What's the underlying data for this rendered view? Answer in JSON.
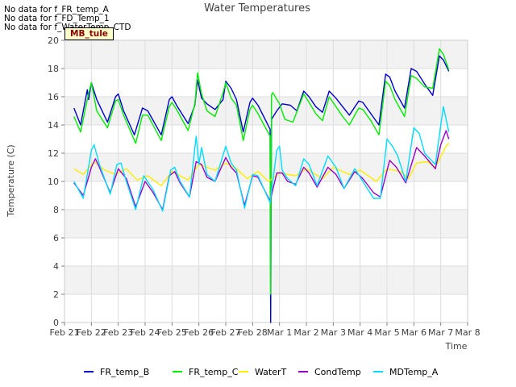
{
  "notes": [
    "No data for f_FR_temp_A",
    "No data for f_FD_Temp_1",
    "No data for f_WaterTemp_CTD"
  ],
  "site_badge": "MB_tule",
  "chart_data": {
    "type": "line",
    "title": "Water Temperatures",
    "xlabel": "Time",
    "ylabel": "Temperature (C)",
    "xlim": [
      "2021-02-21",
      "2021-03-08"
    ],
    "ylim": [
      0,
      20
    ],
    "yticks": [
      0,
      2,
      4,
      6,
      8,
      10,
      12,
      14,
      16,
      18,
      20
    ],
    "xticks": [
      {
        "label": "Feb 21",
        "day": 0
      },
      {
        "label": "Feb 22",
        "day": 1
      },
      {
        "label": "Feb 23",
        "day": 2
      },
      {
        "label": "Feb 24",
        "day": 3
      },
      {
        "label": "Feb 25",
        "day": 4
      },
      {
        "label": "Feb 26",
        "day": 5
      },
      {
        "label": "Feb 27",
        "day": 6
      },
      {
        "label": "Feb 28",
        "day": 7
      },
      {
        "label": "Mar 1",
        "day": 8
      },
      {
        "label": "Mar 2",
        "day": 9
      },
      {
        "label": "Mar 3",
        "day": 10
      },
      {
        "label": "Mar 4",
        "day": 11
      },
      {
        "label": "Mar 5",
        "day": 12
      },
      {
        "label": "Mar 6",
        "day": 13
      },
      {
        "label": "Mar 7",
        "day": 14
      },
      {
        "label": "Mar 8",
        "day": 15
      }
    ],
    "grid": true,
    "background_bands": "alternating light grey every 2 degrees",
    "legend_position": "bottom",
    "series": [
      {
        "name": "FR_temp_B",
        "color": "#0000cc",
        "points": [
          [
            0.35,
            15.2
          ],
          [
            0.6,
            14.0
          ],
          [
            0.85,
            16.5
          ],
          [
            0.9,
            15.8
          ],
          [
            1.0,
            17.0
          ],
          [
            1.2,
            15.8
          ],
          [
            1.6,
            14.2
          ],
          [
            1.9,
            16.0
          ],
          [
            2.0,
            16.2
          ],
          [
            2.2,
            15.0
          ],
          [
            2.6,
            13.3
          ],
          [
            2.9,
            15.2
          ],
          [
            3.1,
            15.0
          ],
          [
            3.6,
            13.3
          ],
          [
            3.9,
            15.8
          ],
          [
            4.0,
            16.0
          ],
          [
            4.2,
            15.3
          ],
          [
            4.6,
            14.1
          ],
          [
            4.85,
            15.4
          ],
          [
            4.95,
            17.2
          ],
          [
            5.1,
            15.9
          ],
          [
            5.3,
            15.5
          ],
          [
            5.6,
            15.1
          ],
          [
            5.9,
            15.8
          ],
          [
            6.0,
            17.1
          ],
          [
            6.2,
            16.6
          ],
          [
            6.4,
            15.8
          ],
          [
            6.65,
            13.5
          ],
          [
            6.9,
            15.6
          ],
          [
            7.0,
            15.9
          ],
          [
            7.2,
            15.4
          ],
          [
            7.65,
            13.7
          ],
          [
            7.67,
            0.0
          ],
          [
            7.7,
            14.4
          ],
          [
            7.9,
            15.0
          ],
          [
            8.1,
            15.5
          ],
          [
            8.4,
            15.4
          ],
          [
            8.65,
            15.0
          ],
          [
            8.9,
            16.4
          ],
          [
            9.1,
            16.0
          ],
          [
            9.35,
            15.3
          ],
          [
            9.6,
            14.9
          ],
          [
            9.85,
            16.4
          ],
          [
            10.1,
            15.9
          ],
          [
            10.35,
            15.3
          ],
          [
            10.6,
            14.7
          ],
          [
            10.95,
            15.7
          ],
          [
            11.1,
            15.6
          ],
          [
            11.4,
            14.8
          ],
          [
            11.7,
            14.0
          ],
          [
            11.95,
            17.6
          ],
          [
            12.1,
            17.4
          ],
          [
            12.3,
            16.4
          ],
          [
            12.65,
            15.2
          ],
          [
            12.9,
            18.0
          ],
          [
            13.1,
            17.8
          ],
          [
            13.4,
            16.9
          ],
          [
            13.7,
            16.1
          ],
          [
            13.95,
            18.9
          ],
          [
            14.1,
            18.6
          ],
          [
            14.3,
            17.8
          ]
        ]
      },
      {
        "name": "FR_temp_C",
        "color": "#00ee00",
        "points": [
          [
            0.35,
            14.6
          ],
          [
            0.6,
            13.5
          ],
          [
            0.85,
            15.8
          ],
          [
            1.0,
            17.0
          ],
          [
            1.2,
            15.0
          ],
          [
            1.6,
            13.8
          ],
          [
            1.9,
            15.7
          ],
          [
            2.0,
            15.8
          ],
          [
            2.2,
            14.7
          ],
          [
            2.65,
            12.7
          ],
          [
            2.9,
            14.7
          ],
          [
            3.1,
            14.7
          ],
          [
            3.6,
            12.9
          ],
          [
            3.9,
            15.3
          ],
          [
            4.0,
            15.6
          ],
          [
            4.2,
            15.0
          ],
          [
            4.6,
            13.6
          ],
          [
            4.85,
            15.5
          ],
          [
            4.95,
            17.7
          ],
          [
            5.1,
            16.2
          ],
          [
            5.3,
            15.0
          ],
          [
            5.6,
            14.6
          ],
          [
            5.9,
            16.3
          ],
          [
            6.0,
            17.0
          ],
          [
            6.2,
            15.9
          ],
          [
            6.4,
            15.4
          ],
          [
            6.65,
            12.9
          ],
          [
            6.9,
            15.1
          ],
          [
            7.0,
            15.4
          ],
          [
            7.2,
            14.8
          ],
          [
            7.65,
            13.2
          ],
          [
            7.67,
            2.0
          ],
          [
            7.7,
            16.1
          ],
          [
            7.75,
            16.3
          ],
          [
            8.0,
            15.5
          ],
          [
            8.2,
            14.4
          ],
          [
            8.5,
            14.2
          ],
          [
            8.9,
            16.2
          ],
          [
            9.1,
            15.6
          ],
          [
            9.35,
            14.8
          ],
          [
            9.6,
            14.3
          ],
          [
            9.85,
            16.0
          ],
          [
            10.1,
            15.3
          ],
          [
            10.35,
            14.6
          ],
          [
            10.6,
            14.0
          ],
          [
            10.95,
            15.2
          ],
          [
            11.1,
            15.1
          ],
          [
            11.4,
            14.3
          ],
          [
            11.7,
            13.3
          ],
          [
            11.95,
            17.1
          ],
          [
            12.1,
            16.8
          ],
          [
            12.3,
            15.8
          ],
          [
            12.65,
            14.6
          ],
          [
            12.9,
            17.5
          ],
          [
            13.1,
            17.3
          ],
          [
            13.4,
            16.7
          ],
          [
            13.7,
            16.6
          ],
          [
            13.95,
            19.4
          ],
          [
            14.1,
            19.0
          ],
          [
            14.3,
            17.9
          ]
        ]
      },
      {
        "name": "WaterT",
        "color": "#ffee00",
        "points": [
          [
            0.35,
            10.9
          ],
          [
            0.7,
            10.5
          ],
          [
            1.1,
            11.4
          ],
          [
            1.5,
            10.8
          ],
          [
            1.9,
            10.5
          ],
          [
            2.3,
            10.9
          ],
          [
            2.7,
            10.1
          ],
          [
            3.1,
            10.4
          ],
          [
            3.6,
            9.7
          ],
          [
            4.0,
            10.7
          ],
          [
            4.6,
            10.1
          ],
          [
            5.0,
            11.2
          ],
          [
            5.6,
            10.8
          ],
          [
            6.0,
            11.3
          ],
          [
            6.4,
            10.9
          ],
          [
            6.8,
            10.2
          ],
          [
            7.2,
            10.7
          ],
          [
            7.6,
            10.0
          ],
          [
            8.0,
            10.6
          ],
          [
            8.6,
            10.4
          ],
          [
            9.0,
            10.9
          ],
          [
            9.6,
            10.2
          ],
          [
            10.0,
            11.0
          ],
          [
            10.6,
            10.5
          ],
          [
            11.0,
            10.8
          ],
          [
            11.6,
            10.0
          ],
          [
            12.0,
            10.9
          ],
          [
            12.5,
            10.7
          ],
          [
            12.8,
            10.2
          ],
          [
            13.1,
            11.3
          ],
          [
            13.5,
            11.4
          ],
          [
            13.8,
            11.0
          ],
          [
            14.2,
            12.5
          ],
          [
            14.3,
            12.7
          ]
        ]
      },
      {
        "name": "CondTemp",
        "color": "#9900cc",
        "points": [
          [
            0.35,
            9.9
          ],
          [
            0.7,
            9.0
          ],
          [
            1.0,
            11.0
          ],
          [
            1.15,
            11.6
          ],
          [
            1.3,
            11.0
          ],
          [
            1.7,
            9.2
          ],
          [
            2.0,
            10.9
          ],
          [
            2.3,
            10.2
          ],
          [
            2.65,
            8.2
          ],
          [
            3.0,
            10.0
          ],
          [
            3.3,
            9.2
          ],
          [
            3.65,
            8.0
          ],
          [
            3.9,
            10.4
          ],
          [
            4.1,
            10.7
          ],
          [
            4.3,
            9.9
          ],
          [
            4.65,
            8.9
          ],
          [
            4.9,
            11.4
          ],
          [
            5.1,
            11.2
          ],
          [
            5.3,
            10.3
          ],
          [
            5.6,
            10.0
          ],
          [
            6.0,
            11.7
          ],
          [
            6.2,
            11.0
          ],
          [
            6.4,
            10.6
          ],
          [
            6.7,
            8.3
          ],
          [
            7.0,
            10.4
          ],
          [
            7.2,
            10.3
          ],
          [
            7.65,
            8.6
          ],
          [
            7.9,
            10.6
          ],
          [
            8.1,
            10.6
          ],
          [
            8.3,
            10.0
          ],
          [
            8.6,
            9.8
          ],
          [
            8.9,
            11.0
          ],
          [
            9.1,
            10.6
          ],
          [
            9.4,
            9.6
          ],
          [
            9.8,
            11.0
          ],
          [
            10.1,
            10.5
          ],
          [
            10.4,
            9.5
          ],
          [
            10.8,
            10.7
          ],
          [
            11.1,
            10.2
          ],
          [
            11.5,
            9.2
          ],
          [
            11.75,
            8.9
          ],
          [
            12.1,
            11.5
          ],
          [
            12.35,
            11.0
          ],
          [
            12.7,
            9.9
          ],
          [
            13.1,
            12.4
          ],
          [
            13.4,
            11.8
          ],
          [
            13.8,
            10.9
          ],
          [
            14.0,
            12.6
          ],
          [
            14.2,
            13.6
          ],
          [
            14.3,
            13.0
          ]
        ]
      },
      {
        "name": "MDTemp_A",
        "color": "#00ddff",
        "points": [
          [
            0.35,
            10.0
          ],
          [
            0.7,
            8.8
          ],
          [
            1.0,
            12.2
          ],
          [
            1.1,
            12.6
          ],
          [
            1.3,
            11.2
          ],
          [
            1.7,
            9.1
          ],
          [
            1.95,
            11.2
          ],
          [
            2.1,
            11.3
          ],
          [
            2.3,
            10.0
          ],
          [
            2.65,
            8.0
          ],
          [
            2.95,
            10.4
          ],
          [
            3.3,
            9.4
          ],
          [
            3.65,
            7.9
          ],
          [
            3.95,
            10.8
          ],
          [
            4.1,
            11.0
          ],
          [
            4.3,
            10.0
          ],
          [
            4.65,
            8.9
          ],
          [
            4.9,
            13.2
          ],
          [
            5.0,
            11.2
          ],
          [
            5.1,
            12.4
          ],
          [
            5.3,
            10.5
          ],
          [
            5.6,
            10.0
          ],
          [
            6.0,
            12.5
          ],
          [
            6.2,
            11.3
          ],
          [
            6.4,
            10.8
          ],
          [
            6.7,
            8.1
          ],
          [
            7.0,
            10.5
          ],
          [
            7.2,
            10.4
          ],
          [
            7.65,
            8.5
          ],
          [
            7.9,
            12.2
          ],
          [
            8.0,
            12.5
          ],
          [
            8.1,
            10.8
          ],
          [
            8.3,
            10.2
          ],
          [
            8.6,
            9.7
          ],
          [
            8.9,
            11.6
          ],
          [
            9.1,
            11.2
          ],
          [
            9.4,
            9.7
          ],
          [
            9.8,
            11.8
          ],
          [
            10.1,
            11.0
          ],
          [
            10.4,
            9.5
          ],
          [
            10.8,
            10.9
          ],
          [
            11.1,
            10.0
          ],
          [
            11.5,
            8.8
          ],
          [
            11.75,
            8.8
          ],
          [
            12.0,
            13.0
          ],
          [
            12.2,
            12.5
          ],
          [
            12.4,
            11.8
          ],
          [
            12.7,
            10.0
          ],
          [
            13.0,
            13.8
          ],
          [
            13.2,
            13.4
          ],
          [
            13.4,
            12.0
          ],
          [
            13.8,
            11.2
          ],
          [
            14.0,
            14.0
          ],
          [
            14.1,
            15.3
          ],
          [
            14.3,
            13.5
          ]
        ]
      }
    ]
  }
}
